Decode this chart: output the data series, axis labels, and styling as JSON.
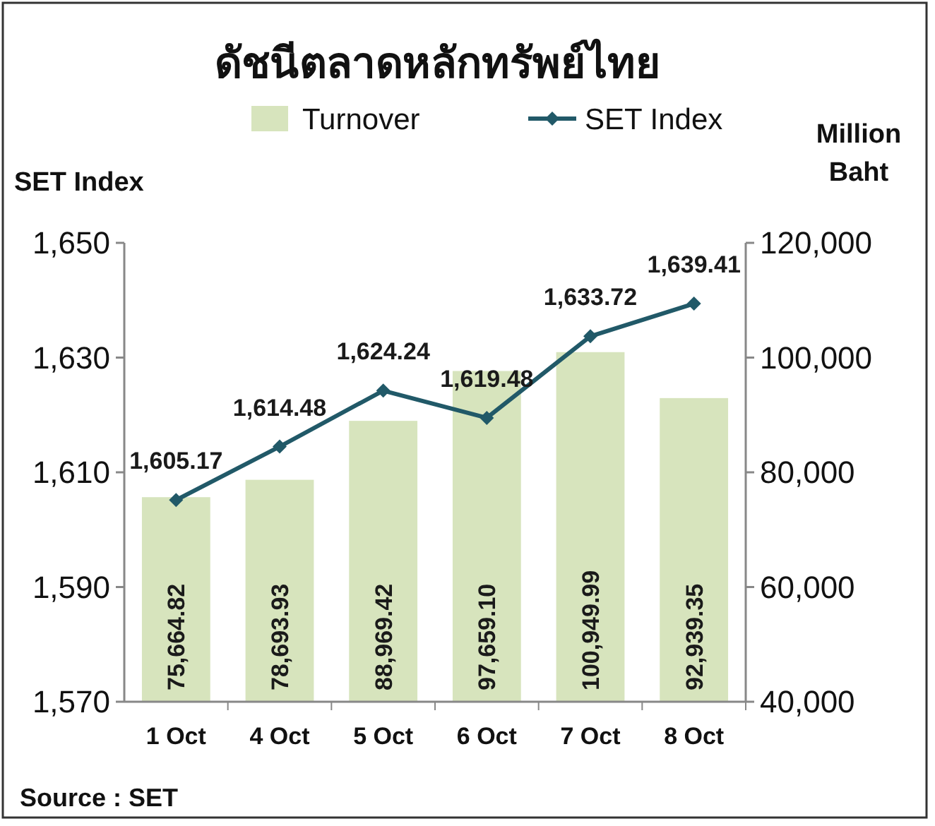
{
  "chart_data": {
    "type": "bar",
    "title": "ดัชนีตลาดหลักทรัพย์ไทย",
    "ylabel": "SET Index",
    "y2label": "Million Baht",
    "categories": [
      "1 Oct",
      "4 Oct",
      "5 Oct",
      "6 Oct",
      "7 Oct",
      "8 Oct"
    ],
    "series": [
      {
        "name": "Turnover",
        "axis": "y2",
        "color": "#d7e4bd",
        "values": [
          75664.82,
          78693.93,
          88969.42,
          97659.1,
          100949.99,
          92939.35
        ],
        "value_labels": [
          "75,664.82",
          "78,693.93",
          "88,969.42",
          "97,659.10",
          "100,949.99",
          "92,939.35"
        ]
      },
      {
        "name": "SET Index",
        "type": "line",
        "axis": "y",
        "color": "#215968",
        "marker": "diamond",
        "values": [
          1605.17,
          1614.48,
          1624.24,
          1619.48,
          1633.72,
          1639.41
        ],
        "value_labels": [
          "1,605.17",
          "1,614.48",
          "1,624.24",
          "1,619.48",
          "1,633.72",
          "1,639.41"
        ]
      }
    ],
    "ylim": [
      1570,
      1650
    ],
    "yticks": [
      {
        "value": 1570,
        "label": "1,570"
      },
      {
        "value": 1590,
        "label": "1,590"
      },
      {
        "value": 1610,
        "label": "1,610"
      },
      {
        "value": 1630,
        "label": "1,630"
      },
      {
        "value": 1650,
        "label": "1,650"
      }
    ],
    "y2lim": [
      40000,
      120000
    ],
    "y2ticks": [
      {
        "value": 40000,
        "label": "40,000"
      },
      {
        "value": 60000,
        "label": "60,000"
      },
      {
        "value": 80000,
        "label": "80,000"
      },
      {
        "value": 100000,
        "label": "100,000"
      },
      {
        "value": 120000,
        "label": "120,000"
      }
    ],
    "legend": "top",
    "grid": false,
    "annotations": [
      "Source : SET"
    ]
  }
}
